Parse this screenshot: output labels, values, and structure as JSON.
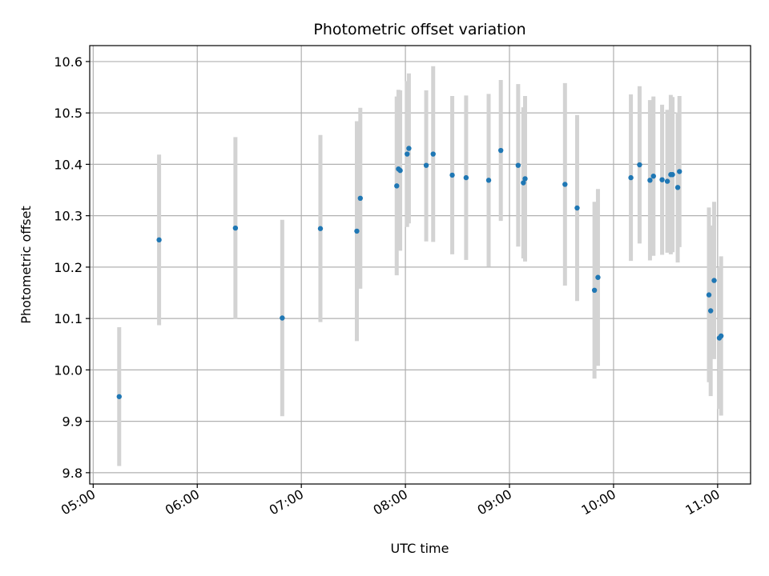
{
  "chart_data": {
    "type": "scatter",
    "title": "Photometric offset variation",
    "xlabel": "UTC time",
    "ylabel": "Photometric offset",
    "x_tick_labels": [
      "05:00",
      "06:00",
      "07:00",
      "08:00",
      "09:00",
      "10:00",
      "11:00"
    ],
    "x_tick_hours": [
      5,
      6,
      7,
      8,
      9,
      10,
      11
    ],
    "y_ticks": [
      9.8,
      9.9,
      10.0,
      10.1,
      10.2,
      10.3,
      10.4,
      10.5,
      10.6
    ],
    "y_tick_labels": [
      "9.8",
      "9.9",
      "10.0",
      "10.1",
      "10.2",
      "10.3",
      "10.4",
      "10.5",
      "10.6"
    ],
    "xlim": [
      "04:58",
      "11:19"
    ],
    "ylim": [
      9.778,
      10.631
    ],
    "grid": true,
    "marker_color": "#1f77b4",
    "errorbar_color": "#d3d3d3",
    "points": [
      {
        "time": "05:15",
        "value": 9.948,
        "low": 9.813,
        "high": 10.083
      },
      {
        "time": "05:38",
        "value": 10.253,
        "low": 10.087,
        "high": 10.419
      },
      {
        "time": "06:22",
        "value": 10.276,
        "low": 10.099,
        "high": 10.453
      },
      {
        "time": "06:49",
        "value": 10.101,
        "low": 9.91,
        "high": 10.292
      },
      {
        "time": "07:11",
        "value": 10.275,
        "low": 10.093,
        "high": 10.457
      },
      {
        "time": "07:32",
        "value": 10.27,
        "low": 10.056,
        "high": 10.484
      },
      {
        "time": "07:34",
        "value": 10.334,
        "low": 10.158,
        "high": 10.51
      },
      {
        "time": "07:55",
        "value": 10.358,
        "low": 10.184,
        "high": 10.532
      },
      {
        "time": "07:56",
        "value": 10.391,
        "low": 10.237,
        "high": 10.545
      },
      {
        "time": "07:57",
        "value": 10.388,
        "low": 10.232,
        "high": 10.544
      },
      {
        "time": "08:01",
        "value": 10.42,
        "low": 10.278,
        "high": 10.562
      },
      {
        "time": "08:02",
        "value": 10.431,
        "low": 10.285,
        "high": 10.577
      },
      {
        "time": "08:12",
        "value": 10.398,
        "low": 10.25,
        "high": 10.544
      },
      {
        "time": "08:16",
        "value": 10.42,
        "low": 10.249,
        "high": 10.591
      },
      {
        "time": "08:27",
        "value": 10.379,
        "low": 10.225,
        "high": 10.533
      },
      {
        "time": "08:35",
        "value": 10.374,
        "low": 10.214,
        "high": 10.534
      },
      {
        "time": "08:48",
        "value": 10.369,
        "low": 10.201,
        "high": 10.537
      },
      {
        "time": "08:55",
        "value": 10.427,
        "low": 10.29,
        "high": 10.564
      },
      {
        "time": "09:05",
        "value": 10.398,
        "low": 10.24,
        "high": 10.556
      },
      {
        "time": "09:08",
        "value": 10.364,
        "low": 10.217,
        "high": 10.511
      },
      {
        "time": "09:09",
        "value": 10.372,
        "low": 10.211,
        "high": 10.533
      },
      {
        "time": "09:32",
        "value": 10.361,
        "low": 10.164,
        "high": 10.558
      },
      {
        "time": "09:39",
        "value": 10.315,
        "low": 10.134,
        "high": 10.496
      },
      {
        "time": "09:49",
        "value": 10.155,
        "low": 9.983,
        "high": 10.327
      },
      {
        "time": "09:51",
        "value": 10.18,
        "low": 10.008,
        "high": 10.352
      },
      {
        "time": "10:10",
        "value": 10.374,
        "low": 10.212,
        "high": 10.536
      },
      {
        "time": "10:15",
        "value": 10.399,
        "low": 10.246,
        "high": 10.552
      },
      {
        "time": "10:21",
        "value": 10.369,
        "low": 10.213,
        "high": 10.525
      },
      {
        "time": "10:23",
        "value": 10.377,
        "low": 10.222,
        "high": 10.532
      },
      {
        "time": "10:28",
        "value": 10.37,
        "low": 10.224,
        "high": 10.516
      },
      {
        "time": "10:31",
        "value": 10.367,
        "low": 10.228,
        "high": 10.506
      },
      {
        "time": "10:33",
        "value": 10.38,
        "low": 10.225,
        "high": 10.535
      },
      {
        "time": "10:34",
        "value": 10.38,
        "low": 10.229,
        "high": 10.531
      },
      {
        "time": "10:37",
        "value": 10.355,
        "low": 10.209,
        "high": 10.501
      },
      {
        "time": "10:38",
        "value": 10.386,
        "low": 10.239,
        "high": 10.533
      },
      {
        "time": "10:55",
        "value": 10.146,
        "low": 9.976,
        "high": 10.316
      },
      {
        "time": "10:56",
        "value": 10.115,
        "low": 9.949,
        "high": 10.281
      },
      {
        "time": "10:58",
        "value": 10.174,
        "low": 10.021,
        "high": 10.327
      },
      {
        "time": "11:01",
        "value": 10.062,
        "low": 9.924,
        "high": 10.2
      },
      {
        "time": "11:02",
        "value": 10.066,
        "low": 9.911,
        "high": 10.221
      }
    ]
  }
}
